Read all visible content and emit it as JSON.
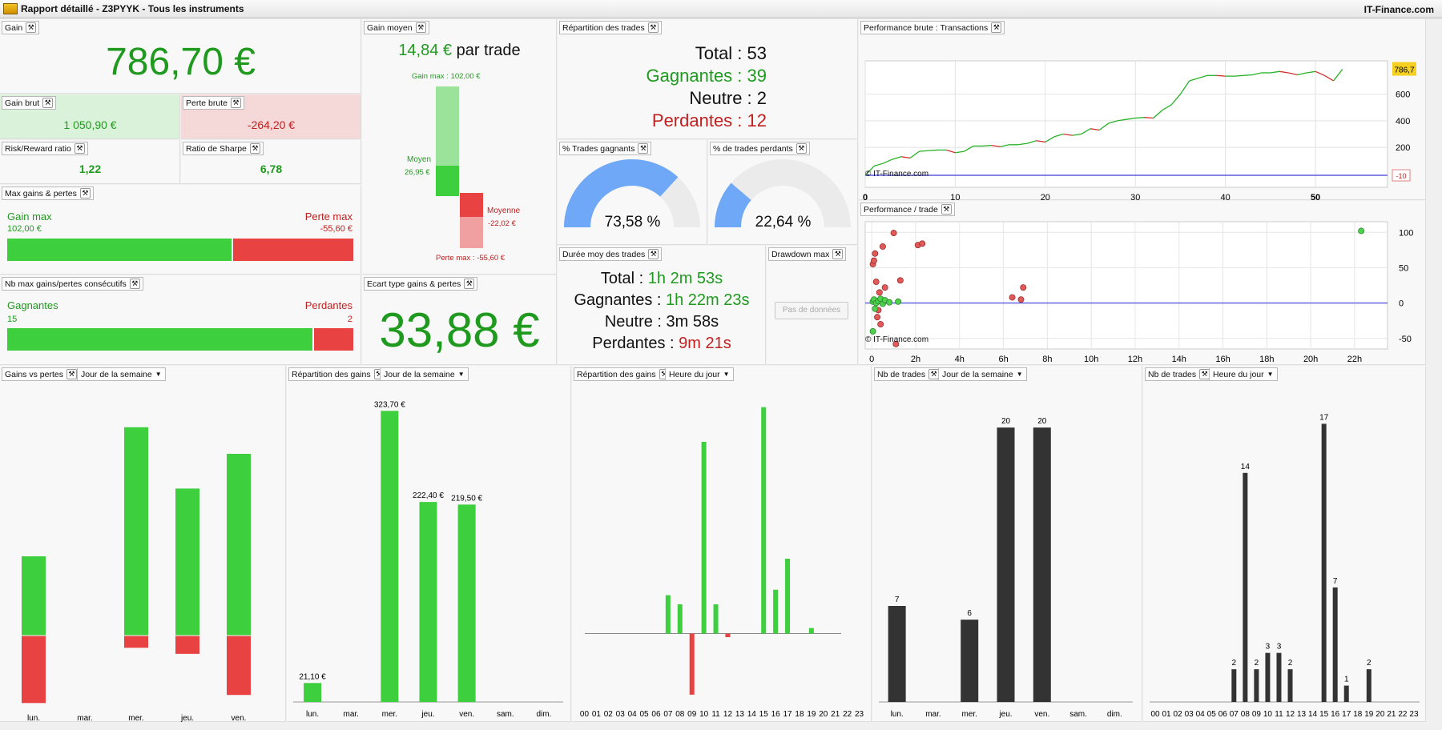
{
  "window": {
    "title": "Rapport détaillé - Z3PYYK - Tous les instruments",
    "brand": "IT-Finance.com"
  },
  "gain": {
    "label": "Gain",
    "value": "786,70 €"
  },
  "gain_brut": {
    "label": "Gain brut",
    "value": "1 050,90 €"
  },
  "perte_brute": {
    "label": "Perte brute",
    "value": "-264,20 €"
  },
  "risk_reward": {
    "label": "Risk/Reward ratio",
    "value": "1,22"
  },
  "sharpe": {
    "label": "Ratio de Sharpe",
    "value": "6,78"
  },
  "max_gains": {
    "label": "Max gains & pertes",
    "gain_label": "Gain max",
    "gain_value": "102,00 €",
    "perte_label": "Perte max",
    "perte_value": "-55,60 €",
    "gain_share": 0.647
  },
  "consecutifs": {
    "label": "Nb max gains/pertes consécutifs",
    "win_label": "Gagnantes",
    "win_value": "15",
    "loss_label": "Perdantes",
    "loss_value": "2",
    "win_share": 0.882
  },
  "gain_moyen": {
    "label": "Gain moyen",
    "value": "14,84 €",
    "suffix": "par trade",
    "gain_max": "Gain max : 102,00 €",
    "moyen_label": "Moyen",
    "moyen_value": "26,95 €",
    "moyenne_label": "Moyenne",
    "moyenne_value": "-22,02 €",
    "perte_max": "Perte max : -55,60 €"
  },
  "ecart_type": {
    "label": "Ecart type gains & pertes",
    "value": "33,88 €"
  },
  "repartition_trades": {
    "label": "Répartition des trades",
    "total": "Total : 53",
    "gagnantes": "Gagnantes : 39",
    "neutre": "Neutre : 2",
    "perdantes": "Perdantes : 12"
  },
  "pct_gagnants": {
    "label": "% Trades gagnants",
    "value": "73,58 %",
    "fraction": 0.7358
  },
  "pct_perdants": {
    "label": "% de trades perdants",
    "value": "22,64 %",
    "fraction": 0.2264
  },
  "duree": {
    "label": "Durée moy des trades",
    "rows": [
      {
        "k": "Total : ",
        "v": "1h 2m 53s",
        "cls": "green"
      },
      {
        "k": "Gagnantes : ",
        "v": "1h 22m 23s",
        "cls": "green"
      },
      {
        "k": "Neutre : ",
        "v": "3m 58s",
        "cls": ""
      },
      {
        "k": "Perdantes : ",
        "v": "9m 21s",
        "cls": "red"
      }
    ]
  },
  "drawdown": {
    "label": "Drawdown max",
    "button": "Pas de données"
  },
  "perf_brute": {
    "label": "Performance brute : Transactions",
    "copyright": "© IT-Finance.com"
  },
  "perf_trade": {
    "label": "Performance / trade",
    "copyright": "© IT-Finance.com"
  },
  "bottom": {
    "gains_vs_pertes": {
      "label": "Gains vs pertes",
      "dropdown": "Jour de la semaine"
    },
    "rep_gains_jour": {
      "label": "Répartition des gains",
      "dropdown": "Jour de la semaine"
    },
    "rep_gains_heure": {
      "label": "Répartition des gains",
      "dropdown": "Heure du jour"
    },
    "nb_trades_jour": {
      "label": "Nb de trades",
      "dropdown": "Jour de la semaine"
    },
    "nb_trades_heure": {
      "label": "Nb de trades",
      "dropdown": "Heure du jour"
    }
  },
  "colors": {
    "green": "#3ecf3e",
    "red": "#e84242",
    "dark": "#333333",
    "blue_gauge": "#6fa8f7",
    "highlight": "#f5d020"
  },
  "chart_data": [
    {
      "id": "perf_brute",
      "type": "line",
      "x_ticks": [
        "0",
        "10",
        "20",
        "30",
        "40",
        "50"
      ],
      "y_ticks": [
        "200",
        "400",
        "600"
      ],
      "end_label": "786,7",
      "floor_label": "-10",
      "xlim": [
        0,
        58
      ],
      "ylim": [
        -100,
        850
      ],
      "x": [
        0,
        1,
        2,
        3,
        4,
        5,
        6,
        7,
        8,
        9,
        10,
        11,
        12,
        13,
        14,
        15,
        16,
        17,
        18,
        19,
        20,
        21,
        22,
        23,
        24,
        25,
        26,
        27,
        28,
        29,
        30,
        31,
        32,
        33,
        34,
        35,
        36,
        37,
        38,
        39,
        40,
        41,
        42,
        43,
        44,
        45,
        46,
        47,
        48,
        49,
        50,
        51,
        52,
        53
      ],
      "y": [
        -10,
        60,
        80,
        110,
        130,
        120,
        170,
        175,
        180,
        180,
        160,
        170,
        210,
        210,
        215,
        205,
        220,
        220,
        230,
        250,
        240,
        280,
        300,
        290,
        300,
        340,
        330,
        380,
        400,
        410,
        420,
        425,
        420,
        480,
        520,
        600,
        700,
        720,
        740,
        740,
        735,
        735,
        740,
        745,
        760,
        760,
        770,
        760,
        745,
        760,
        770,
        740,
        700,
        786.7
      ]
    },
    {
      "id": "perf_trade",
      "type": "scatter",
      "x_ticks": [
        "0",
        "2h",
        "4h",
        "6h",
        "8h",
        "10h",
        "12h",
        "14h",
        "16h",
        "18h",
        "20h",
        "22h"
      ],
      "y_ticks": [
        "100",
        "50",
        "0",
        "-50"
      ],
      "xlim": [
        -0.3,
        23.5
      ],
      "ylim": [
        -65,
        115
      ],
      "winners": [
        [
          0.05,
          2
        ],
        [
          0.1,
          5
        ],
        [
          0.15,
          -8
        ],
        [
          0.2,
          0
        ],
        [
          0.3,
          3
        ],
        [
          0.4,
          6
        ],
        [
          0.5,
          -1
        ],
        [
          0.6,
          4
        ],
        [
          0.8,
          1
        ],
        [
          1.2,
          2
        ],
        [
          0.05,
          -40
        ],
        [
          22.3,
          102
        ]
      ],
      "losers": [
        [
          0.05,
          55
        ],
        [
          0.1,
          60
        ],
        [
          0.15,
          70
        ],
        [
          0.2,
          30
        ],
        [
          0.3,
          -10
        ],
        [
          0.25,
          -20
        ],
        [
          0.4,
          -30
        ],
        [
          0.5,
          80
        ],
        [
          1.0,
          99
        ],
        [
          1.1,
          -58
        ],
        [
          0.6,
          22
        ],
        [
          1.3,
          32
        ],
        [
          2.1,
          82
        ],
        [
          2.3,
          84
        ],
        [
          6.4,
          8
        ],
        [
          6.8,
          5
        ],
        [
          6.9,
          22
        ],
        [
          0.35,
          15
        ]
      ]
    },
    {
      "id": "gains_vs_pertes_jour",
      "type": "bar",
      "categories": [
        "lun.",
        "mar.",
        "mer.",
        "jeu.",
        "ven."
      ],
      "gains": [
        141.5,
        0,
        373.2,
        263.1,
        325.4
      ],
      "pertes": [
        -120.4,
        0,
        -21.2,
        -32.1,
        -105.9
      ],
      "ylim": [
        -130,
        380
      ]
    },
    {
      "id": "repartition_gains_jour",
      "type": "bar",
      "categories": [
        "lun.",
        "mar.",
        "mer.",
        "jeu.",
        "ven.",
        "sam.",
        "dim."
      ],
      "values": [
        21.1,
        0,
        323.7,
        222.4,
        219.5,
        0,
        0
      ],
      "labels": [
        "21,10 €",
        "",
        "323,70 €",
        "222,40 €",
        "219,50 €",
        "",
        ""
      ],
      "ylim": [
        0,
        340
      ]
    },
    {
      "id": "repartition_gains_heure",
      "type": "bar",
      "categories": [
        "00",
        "01",
        "02",
        "03",
        "04",
        "05",
        "06",
        "07",
        "08",
        "09",
        "10",
        "11",
        "12",
        "13",
        "14",
        "15",
        "16",
        "17",
        "18",
        "19",
        "20",
        "21",
        "22",
        "23"
      ],
      "values": [
        0,
        0,
        0,
        0,
        0,
        0,
        0,
        42,
        32,
        -67,
        210,
        32,
        -4,
        0,
        0,
        248,
        48,
        82,
        0,
        6,
        0,
        0,
        0,
        0
      ],
      "ylim": [
        -75,
        260
      ]
    },
    {
      "id": "nb_trades_jour",
      "type": "bar",
      "categories": [
        "lun.",
        "mar.",
        "mer.",
        "jeu.",
        "ven.",
        "sam.",
        "dim."
      ],
      "values": [
        7,
        0,
        6,
        20,
        20,
        0,
        0
      ],
      "ylim": [
        0,
        21
      ]
    },
    {
      "id": "nb_trades_heure",
      "type": "bar",
      "categories": [
        "00",
        "01",
        "02",
        "03",
        "04",
        "05",
        "06",
        "07",
        "08",
        "09",
        "10",
        "11",
        "12",
        "13",
        "14",
        "15",
        "16",
        "17",
        "18",
        "19",
        "20",
        "21",
        "22",
        "23"
      ],
      "values": [
        0,
        0,
        0,
        0,
        0,
        0,
        0,
        2,
        14,
        2,
        3,
        3,
        2,
        0,
        0,
        17,
        7,
        1,
        0,
        2,
        0,
        0,
        0,
        0
      ],
      "ylim": [
        0,
        18
      ]
    }
  ]
}
